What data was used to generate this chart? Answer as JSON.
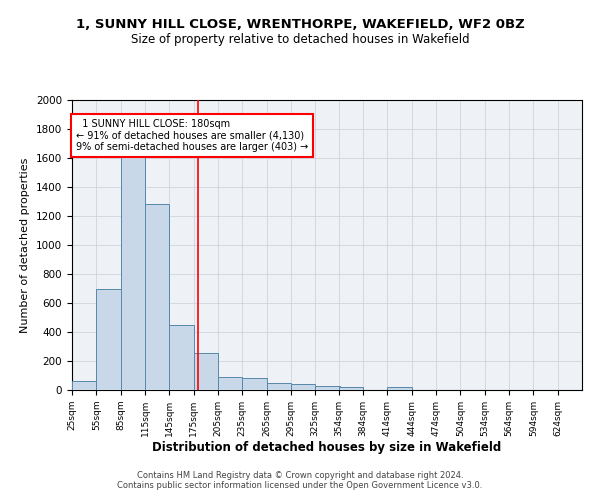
{
  "title": "1, SUNNY HILL CLOSE, WRENTHORPE, WAKEFIELD, WF2 0BZ",
  "subtitle": "Size of property relative to detached houses in Wakefield",
  "xlabel": "Distribution of detached houses by size in Wakefield",
  "ylabel": "Number of detached properties",
  "bar_color": "#c8d8e8",
  "bar_edge_color": "#5588aa",
  "property_size": 180,
  "annotation_line_color": "red",
  "annotation_text_line1": "  1 SUNNY HILL CLOSE: 180sqm",
  "annotation_text_line2": "← 91% of detached houses are smaller (4,130)",
  "annotation_text_line3": "9% of semi-detached houses are larger (403) →",
  "categories": [
    "25sqm",
    "55sqm",
    "85sqm",
    "115sqm",
    "145sqm",
    "175sqm",
    "205sqm",
    "235sqm",
    "265sqm",
    "295sqm",
    "325sqm",
    "354sqm",
    "384sqm",
    "414sqm",
    "444sqm",
    "474sqm",
    "504sqm",
    "534sqm",
    "564sqm",
    "594sqm",
    "624sqm"
  ],
  "bin_edges": [
    25,
    55,
    85,
    115,
    145,
    175,
    205,
    235,
    265,
    295,
    325,
    354,
    384,
    414,
    444,
    474,
    504,
    534,
    564,
    594,
    624
  ],
  "bin_width": 30,
  "values": [
    65,
    695,
    1635,
    1285,
    445,
    253,
    90,
    85,
    50,
    40,
    30,
    20,
    0,
    20,
    0,
    0,
    0,
    0,
    0,
    0,
    0
  ],
  "ylim": [
    0,
    2000
  ],
  "yticks": [
    0,
    200,
    400,
    600,
    800,
    1000,
    1200,
    1400,
    1600,
    1800,
    2000
  ],
  "footer1": "Contains HM Land Registry data © Crown copyright and database right 2024.",
  "footer2": "Contains public sector information licensed under the Open Government Licence v3.0.",
  "bg_color": "#eef2f7"
}
